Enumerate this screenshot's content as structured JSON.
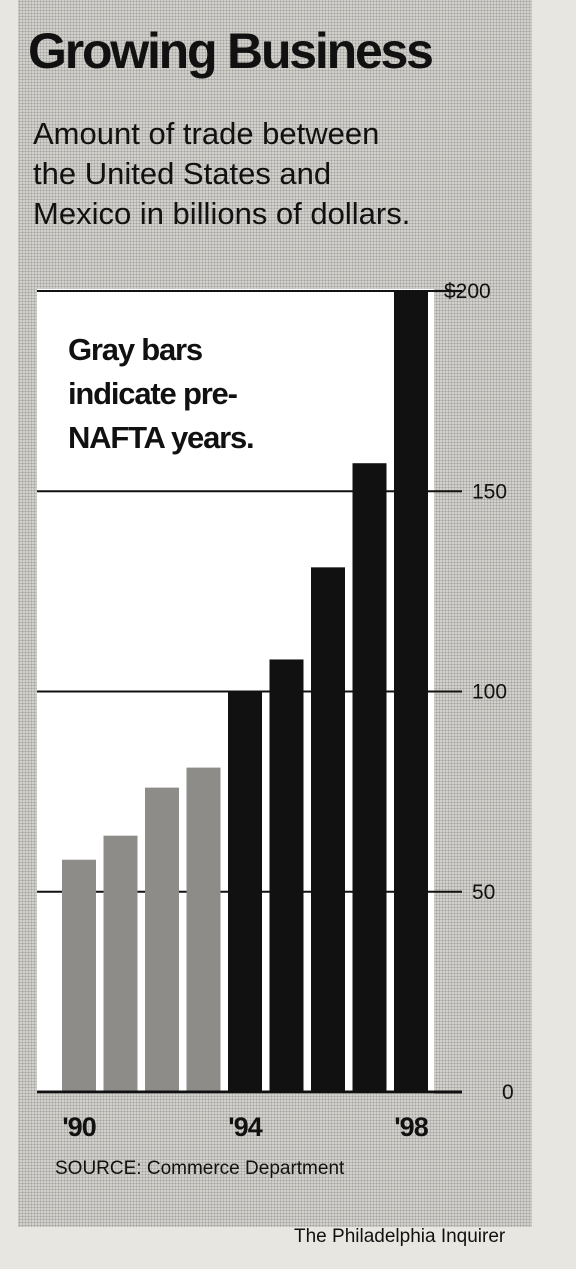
{
  "credit": "The Philadelphia Inquirer",
  "chart_data": {
    "type": "bar",
    "title": "Growing Business",
    "subtitle": "Amount of trade between\nthe United States and\nMexico in billions of dollars.",
    "note": "Gray bars\nindicate pre-\nNAFTA years.",
    "source": "SOURCE: Commerce Department",
    "categories": [
      "1990",
      "1991",
      "1992",
      "1993",
      "1994",
      "1995",
      "1996",
      "1997",
      "1998"
    ],
    "values": [
      58,
      64,
      76,
      81,
      100,
      108,
      131,
      157,
      200
    ],
    "bar_groups": [
      "pre-NAFTA",
      "pre-NAFTA",
      "pre-NAFTA",
      "pre-NAFTA",
      "NAFTA",
      "NAFTA",
      "NAFTA",
      "NAFTA",
      "NAFTA"
    ],
    "colors": {
      "pre-NAFTA": "#8e8c88",
      "NAFTA": "#111111"
    },
    "x_tick_labels": [
      {
        "index": 0,
        "label": "'90"
      },
      {
        "index": 4,
        "label": "'94"
      },
      {
        "index": 8,
        "label": "'98"
      }
    ],
    "y_ticks": [
      0,
      50,
      100,
      150,
      200
    ],
    "y_tick_labels": [
      "0",
      "50",
      "100",
      "150",
      "$200"
    ],
    "ylim": [
      0,
      200
    ],
    "grid": true,
    "legend": "none"
  }
}
